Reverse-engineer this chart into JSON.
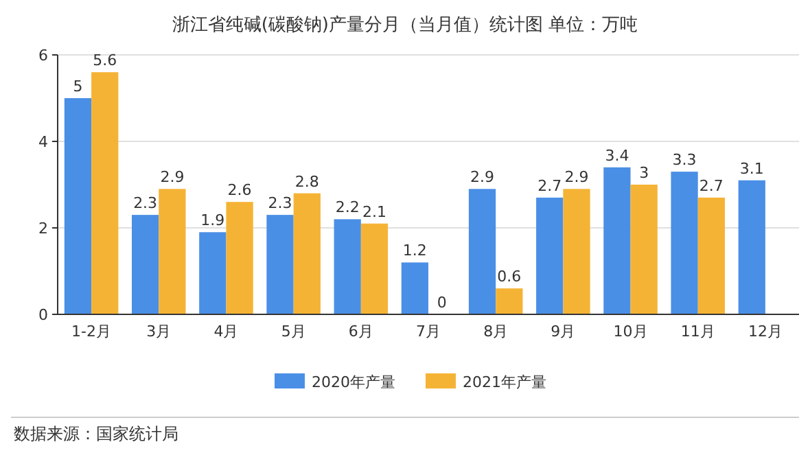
{
  "chart_data": {
    "type": "bar",
    "title": "浙江省纯碱(碳酸钠)产量分月（当月值）统计图 单位：万吨",
    "categories": [
      "1-2月",
      "3月",
      "4月",
      "5月",
      "6月",
      "7月",
      "8月",
      "9月",
      "10月",
      "11月",
      "12月"
    ],
    "series": [
      {
        "name": "2020年产量",
        "color": "#4a8fe6",
        "values": [
          5,
          2.3,
          1.9,
          2.3,
          2.2,
          1.2,
          2.9,
          2.7,
          3.4,
          3.3,
          3.1
        ]
      },
      {
        "name": "2021年产量",
        "color": "#f5b335",
        "values": [
          5.6,
          2.9,
          2.6,
          2.8,
          2.1,
          0,
          0.6,
          2.9,
          3,
          2.7,
          null
        ]
      }
    ],
    "ylim": [
      0,
      6
    ],
    "yticks": [
      0,
      2,
      4,
      6
    ],
    "grid": "y",
    "legend": "bottom",
    "data_labels": true,
    "annotations": [
      "数据来源：国家统计局"
    ]
  }
}
